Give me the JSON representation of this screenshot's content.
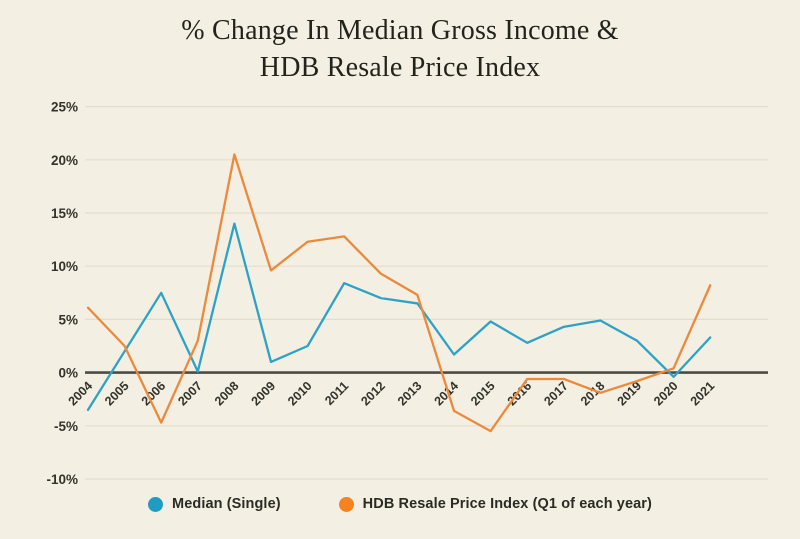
{
  "title": {
    "line1": "% Change In Median Gross Income &",
    "line2": "HDB Resale Price Index"
  },
  "chart_data": {
    "type": "line",
    "title": "% Change In Median Gross Income & HDB Resale Price Index",
    "x": [
      2004,
      2005,
      2006,
      2007,
      2008,
      2009,
      2010,
      2011,
      2012,
      2013,
      2014,
      2015,
      2016,
      2017,
      2018,
      2019,
      2020,
      2021
    ],
    "series": [
      {
        "name": "Median (Single)",
        "color": "#2ea2c6",
        "values": [
          -3.5,
          2.0,
          7.5,
          0.1,
          14.0,
          1.0,
          2.5,
          8.4,
          7.0,
          6.5,
          1.7,
          4.8,
          2.8,
          4.3,
          4.9,
          3.0,
          -0.4,
          3.3
        ]
      },
      {
        "name": "HDB Resale Price Index (Q1 of each year)",
        "color": "#eb8a3d",
        "values": [
          6.1,
          2.5,
          -4.7,
          3.0,
          20.5,
          9.6,
          12.3,
          12.8,
          9.3,
          7.3,
          -3.6,
          -5.5,
          -0.6,
          -0.6,
          -1.9,
          -0.8,
          0.4,
          8.2
        ]
      }
    ],
    "yticks": [
      25,
      20,
      15,
      10,
      5,
      0,
      -5,
      -10
    ],
    "ytick_suffix": "%",
    "ylim": [
      -10,
      25
    ],
    "grid": true,
    "zero_axis_line": true,
    "x_label_rotation": -45,
    "legend_position": "bottom"
  },
  "legend": {
    "items": [
      {
        "label": "Median (Single)",
        "color": "#1f9cc2"
      },
      {
        "label": "HDB Resale Price Index (Q1 of each year)",
        "color": "#f5831f"
      }
    ]
  },
  "colors": {
    "background": "#f3efe2",
    "gridline": "#e3decb",
    "zero_line": "#4c4c45",
    "title_text": "#23231c",
    "tick_text": "#33332b"
  }
}
